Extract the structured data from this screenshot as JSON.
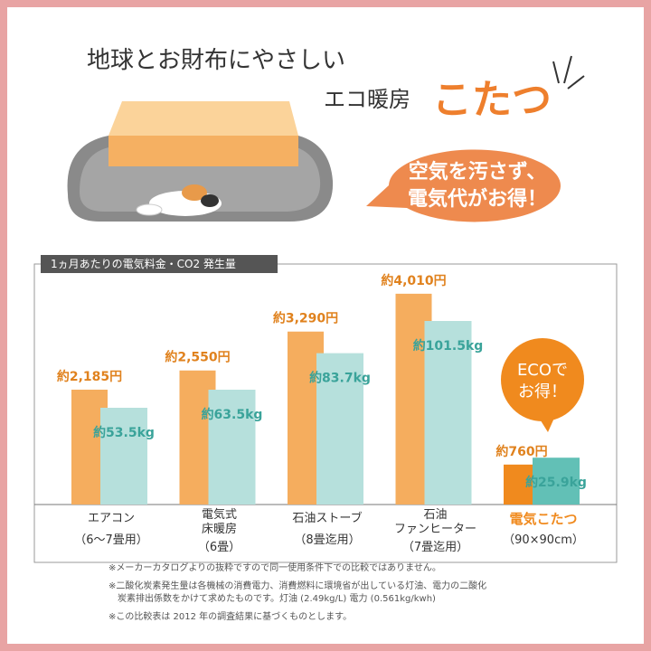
{
  "title_line1": "地球とお財布にやさしい",
  "title_line2": "エコ暖房",
  "title_emphasis": "こたつ",
  "bubble": "空気を汚さず、\n電気代がお得！",
  "chart_data": {
    "type": "bar",
    "title": "1ヵ月あたりの電気料金・CO2 発生量",
    "callout": "ECOで\nお得！",
    "categories": [
      "エアコン",
      "電気式\n床暖房",
      "石油ストーブ",
      "石油\nファンヒーター",
      "電気こたつ"
    ],
    "category_notes": [
      "（6〜7畳用）",
      "（6畳）",
      "（8畳迄用）",
      "（7畳迄用）",
      "（90×90cm）"
    ],
    "ylim": [
      0,
      4300
    ],
    "y2lim": [
      0,
      110
    ],
    "series": [
      {
        "color": "#f5ad5e",
        "colors": [
          "#f5ad5e",
          "#f5ad5e",
          "#f5ad5e",
          "#f5ad5e",
          "#f08a1e"
        ],
        "values": [
          2185,
          2550,
          3290,
          4010,
          760
        ],
        "value_labels": [
          "約2,185円",
          "約2,550円",
          "約3,290円",
          "約4,010円",
          "約760円"
        ]
      },
      {
        "axis": "y2",
        "color": "#b6e0dc",
        "colors": [
          "#b6e0dc",
          "#b6e0dc",
          "#b6e0dc",
          "#b6e0dc",
          "#62c0b6"
        ],
        "values": [
          53.5,
          63.5,
          83.7,
          101.5,
          25.9
        ],
        "value_labels": [
          "約53.5kg",
          "約63.5kg",
          "約83.7kg",
          "約101.5kg",
          "約25.9kg"
        ]
      }
    ]
  },
  "notes": [
    "※メーカーカタログよりの抜粋ですので同一使用条件下での比較ではありません。",
    "※二酸化炭素発生量は各機械の消費電力、消費燃料に環境省が出している灯油、電力の二酸化\n　炭素排出係数をかけて求めたものです。灯油 (2.49kg/L) 電力 (0.561kg/kwh)",
    "※この比較表は 2012 年の調査結果に基づくものとします。"
  ]
}
